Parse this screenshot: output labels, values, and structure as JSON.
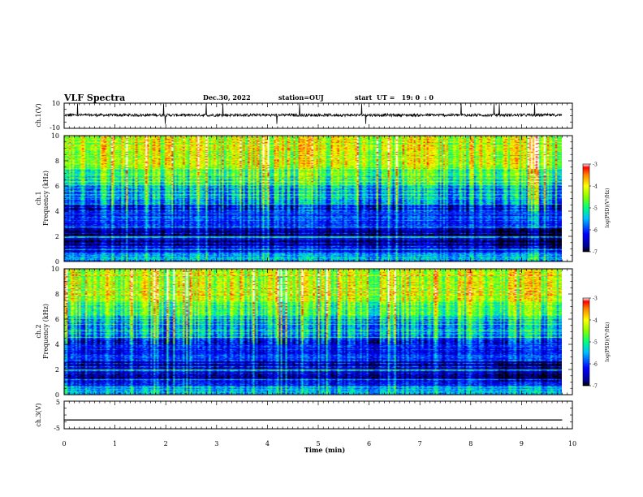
{
  "header": {
    "title": "VLF Spectra",
    "date": "Dec.30, 2022",
    "station": "station=OUJ",
    "start_ut": "start  UT =   19: 0  : 0"
  },
  "chart_data": [
    {
      "type": "line",
      "name": "ch1-waveform",
      "ylabel": "ch.1(V)",
      "ylim": [
        -10,
        10
      ],
      "yticks": [
        "10",
        "-10"
      ],
      "baseline": 0.5
    },
    {
      "type": "heatmap",
      "name": "ch1-spectrogram",
      "ylabel_channel": "ch.1",
      "ylabel": "Frequency  (kHz)",
      "ylim": [
        0,
        10
      ],
      "yticks": [
        "0",
        "2",
        "4",
        "6",
        "8",
        "10"
      ],
      "colorbar": {
        "label": "log(PSD)(V²/Hz)",
        "range": [
          -7,
          -3
        ],
        "ticks": [
          "-3",
          "-4",
          "-5",
          "-6",
          "-7"
        ]
      }
    },
    {
      "type": "heatmap",
      "name": "ch2-spectrogram",
      "ylabel_channel": "ch.2",
      "ylabel": "Frequency  (kHz)",
      "ylim": [
        0,
        10
      ],
      "yticks": [
        "0",
        "2",
        "4",
        "6",
        "8",
        "10"
      ],
      "colorbar": {
        "label": "log(PSD)(V²/Hz)",
        "range": [
          -7,
          -3
        ],
        "ticks": [
          "-3",
          "-4",
          "-5",
          "-6",
          "-7"
        ]
      }
    },
    {
      "type": "line",
      "name": "ch3-waveform",
      "ylabel": "ch.3(V)",
      "ylim": [
        -5,
        5
      ],
      "yticks": [
        "5",
        "-5"
      ],
      "x": [
        0,
        9.8
      ],
      "y": [
        -1.8,
        -1.8
      ]
    }
  ],
  "xaxis": {
    "label": "Time  (min)",
    "range": [
      0,
      10
    ],
    "ticks": [
      "0",
      "1",
      "2",
      "3",
      "4",
      "5",
      "6",
      "7",
      "8",
      "9",
      "10"
    ]
  }
}
